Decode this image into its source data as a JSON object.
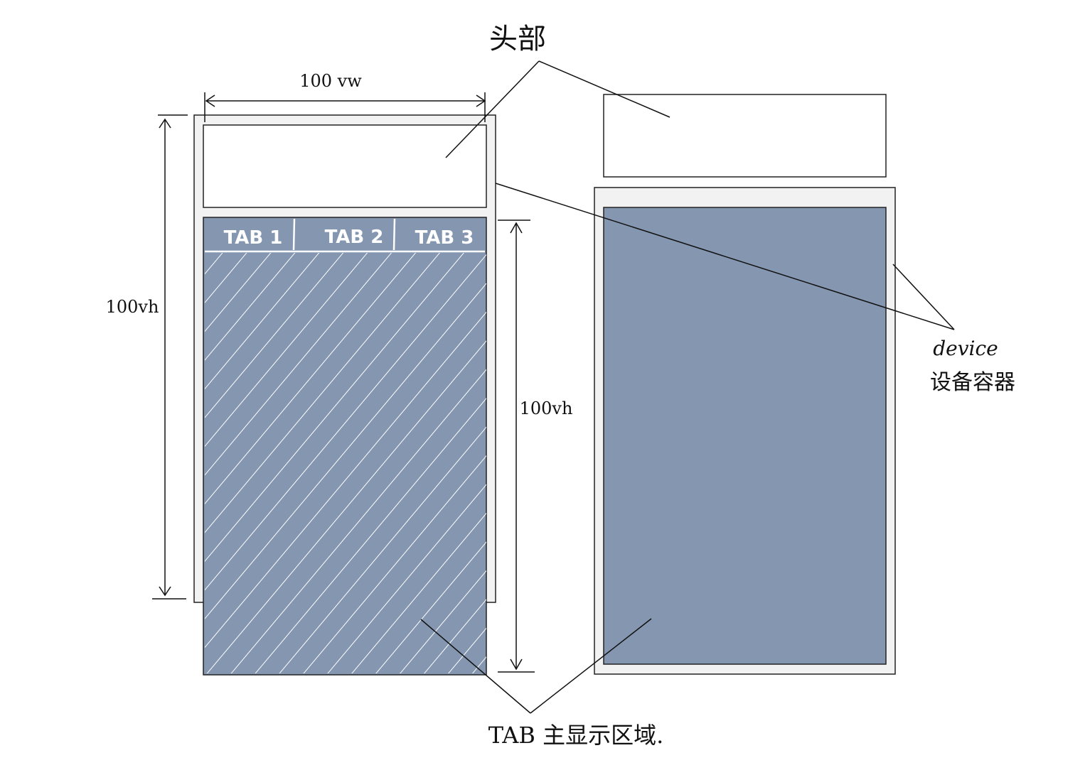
{
  "annotations": {
    "header_label": "头部",
    "width_label": "100 vw",
    "height_label_left": "100vh",
    "height_label_right": "100vh",
    "device_label_en": "device",
    "device_label_zh": "设备容器",
    "tab_area_label": "TAB 主显示区域."
  },
  "tabs": [
    {
      "label": "TAB 1"
    },
    {
      "label": "TAB 2"
    },
    {
      "label": "TAB 3"
    }
  ],
  "colors": {
    "device_fill": "#f2f2f2",
    "content_fill": "#8496b0",
    "stroke": "#222222",
    "hatch": "#ffffff"
  }
}
